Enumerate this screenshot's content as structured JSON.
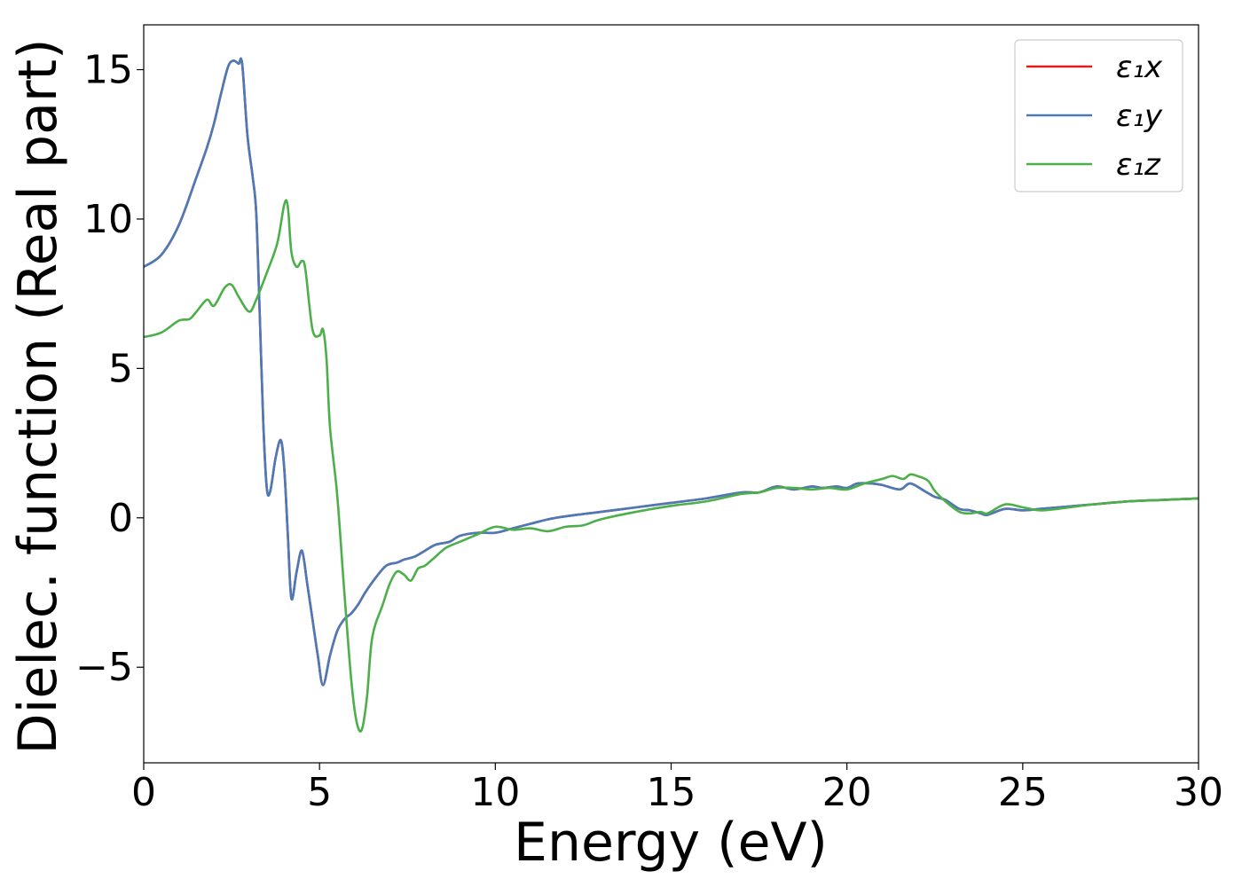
{
  "chart_data": {
    "type": "line",
    "xlabel": "Energy (eV)",
    "ylabel": "Dielec. function (Real part)",
    "xlim": [
      0,
      30
    ],
    "ylim": [
      -8.2,
      16.5
    ],
    "xticks": [
      0,
      5,
      10,
      15,
      20,
      25,
      30
    ],
    "yticks": [
      -5,
      0,
      5,
      10,
      15
    ],
    "ytick_labels": [
      "−5",
      "0",
      "5",
      "10",
      "15"
    ],
    "grid": false,
    "legend_position": "top-right",
    "series": [
      {
        "name": "ε₁x",
        "color": "#e41a1c",
        "x": [
          0,
          0.5,
          1.0,
          1.5,
          1.8,
          2.0,
          2.2,
          2.4,
          2.55,
          2.7,
          2.8,
          2.95,
          3.1,
          3.2,
          3.3,
          3.4,
          3.5,
          3.6,
          3.75,
          3.9,
          4.0,
          4.1,
          4.2,
          4.35,
          4.5,
          4.65,
          4.8,
          4.95,
          5.1,
          5.3,
          5.5,
          5.7,
          5.9,
          6.1,
          6.3,
          6.6,
          6.9,
          7.2,
          7.4,
          7.7,
          8.0,
          8.3,
          8.7,
          9.0,
          9.5,
          10.0,
          10.5,
          11.0,
          11.5,
          12.0,
          13.0,
          14.0,
          15.0,
          16.0,
          17.0,
          17.5,
          18.0,
          18.5,
          19.0,
          19.3,
          19.7,
          20.0,
          20.3,
          20.7,
          21.0,
          21.5,
          21.8,
          22.2,
          22.5,
          22.8,
          23.2,
          23.5,
          23.8,
          24.0,
          24.5,
          25.0,
          25.5,
          26.0,
          27.0,
          28.0,
          29.0,
          30.0
        ],
        "y": [
          8.4,
          8.8,
          9.8,
          11.4,
          12.4,
          13.2,
          14.2,
          15.1,
          15.3,
          15.2,
          15.2,
          12.8,
          11.4,
          10.2,
          6.8,
          3.2,
          1.0,
          0.9,
          2.0,
          2.6,
          1.6,
          -0.6,
          -2.7,
          -1.8,
          -1.1,
          -2.2,
          -3.4,
          -4.6,
          -5.6,
          -4.6,
          -3.8,
          -3.4,
          -3.2,
          -2.9,
          -2.5,
          -2.0,
          -1.6,
          -1.5,
          -1.4,
          -1.3,
          -1.1,
          -0.9,
          -0.8,
          -0.6,
          -0.5,
          -0.5,
          -0.35,
          -0.2,
          -0.05,
          0.05,
          0.2,
          0.35,
          0.5,
          0.65,
          0.85,
          0.85,
          1.05,
          0.95,
          1.05,
          1.0,
          1.05,
          1.0,
          1.15,
          1.15,
          1.1,
          0.95,
          1.15,
          0.9,
          0.7,
          0.6,
          0.3,
          0.25,
          0.15,
          0.1,
          0.3,
          0.25,
          0.3,
          0.35,
          0.45,
          0.55,
          0.6,
          0.65
        ]
      },
      {
        "name": "ε₁y",
        "color": "#4a7ab8",
        "x": [
          0,
          0.5,
          1.0,
          1.5,
          1.8,
          2.0,
          2.2,
          2.4,
          2.55,
          2.7,
          2.8,
          2.95,
          3.1,
          3.2,
          3.3,
          3.4,
          3.5,
          3.6,
          3.75,
          3.9,
          4.0,
          4.1,
          4.2,
          4.35,
          4.5,
          4.65,
          4.8,
          4.95,
          5.1,
          5.3,
          5.5,
          5.7,
          5.9,
          6.1,
          6.3,
          6.6,
          6.9,
          7.2,
          7.4,
          7.7,
          8.0,
          8.3,
          8.7,
          9.0,
          9.5,
          10.0,
          10.5,
          11.0,
          11.5,
          12.0,
          13.0,
          14.0,
          15.0,
          16.0,
          17.0,
          17.5,
          18.0,
          18.5,
          19.0,
          19.3,
          19.7,
          20.0,
          20.3,
          20.7,
          21.0,
          21.5,
          21.8,
          22.2,
          22.5,
          22.8,
          23.2,
          23.5,
          23.8,
          24.0,
          24.5,
          25.0,
          25.5,
          26.0,
          27.0,
          28.0,
          29.0,
          30.0
        ],
        "y": [
          8.4,
          8.8,
          9.8,
          11.4,
          12.4,
          13.2,
          14.2,
          15.1,
          15.3,
          15.2,
          15.2,
          12.8,
          11.4,
          10.2,
          6.8,
          3.2,
          1.0,
          0.9,
          2.0,
          2.6,
          1.6,
          -0.6,
          -2.7,
          -1.8,
          -1.1,
          -2.2,
          -3.4,
          -4.6,
          -5.6,
          -4.6,
          -3.8,
          -3.4,
          -3.2,
          -2.9,
          -2.5,
          -2.0,
          -1.6,
          -1.5,
          -1.4,
          -1.3,
          -1.1,
          -0.9,
          -0.8,
          -0.6,
          -0.5,
          -0.5,
          -0.35,
          -0.2,
          -0.05,
          0.05,
          0.2,
          0.35,
          0.5,
          0.65,
          0.85,
          0.85,
          1.05,
          0.95,
          1.05,
          1.0,
          1.05,
          1.0,
          1.15,
          1.15,
          1.1,
          0.95,
          1.15,
          0.9,
          0.7,
          0.6,
          0.3,
          0.25,
          0.15,
          0.1,
          0.3,
          0.25,
          0.3,
          0.35,
          0.45,
          0.55,
          0.6,
          0.65
        ]
      },
      {
        "name": "ε₁z",
        "color": "#4daf4a",
        "x": [
          0,
          0.5,
          1.0,
          1.3,
          1.5,
          1.8,
          2.0,
          2.3,
          2.5,
          2.7,
          3.0,
          3.2,
          3.5,
          3.8,
          4.0,
          4.1,
          4.2,
          4.35,
          4.5,
          4.6,
          4.8,
          5.0,
          5.1,
          5.2,
          5.3,
          5.5,
          5.7,
          5.9,
          6.05,
          6.2,
          6.35,
          6.5,
          6.8,
          7.0,
          7.2,
          7.4,
          7.6,
          7.8,
          8.0,
          8.3,
          8.6,
          9.0,
          9.5,
          10.0,
          10.5,
          11.0,
          11.5,
          12.0,
          12.5,
          13.0,
          14.0,
          15.0,
          16.0,
          17.0,
          17.5,
          18.0,
          18.5,
          19.0,
          19.5,
          20.0,
          20.5,
          21.0,
          21.3,
          21.6,
          21.8,
          22.0,
          22.3,
          22.5,
          22.8,
          23.2,
          23.5,
          23.8,
          24.0,
          24.5,
          25.0,
          25.5,
          26.0,
          27.0,
          28.0,
          29.0,
          30.0
        ],
        "y": [
          6.05,
          6.2,
          6.6,
          6.65,
          6.9,
          7.3,
          7.1,
          7.7,
          7.8,
          7.4,
          6.9,
          7.3,
          8.2,
          9.2,
          10.5,
          10.4,
          8.9,
          8.4,
          8.6,
          8.3,
          6.3,
          6.1,
          6.3,
          5.3,
          3.0,
          0.8,
          -2.4,
          -5.4,
          -6.8,
          -7.1,
          -6.0,
          -4.0,
          -2.9,
          -2.2,
          -1.8,
          -1.9,
          -2.1,
          -1.7,
          -1.6,
          -1.3,
          -1.0,
          -0.8,
          -0.55,
          -0.3,
          -0.4,
          -0.35,
          -0.45,
          -0.3,
          -0.25,
          -0.05,
          0.2,
          0.4,
          0.55,
          0.8,
          0.85,
          1.0,
          1.0,
          0.95,
          1.0,
          0.95,
          1.15,
          1.3,
          1.4,
          1.3,
          1.45,
          1.4,
          1.25,
          0.9,
          0.55,
          0.2,
          0.15,
          0.2,
          0.15,
          0.45,
          0.35,
          0.25,
          0.3,
          0.45,
          0.55,
          0.6,
          0.65
        ]
      }
    ]
  }
}
